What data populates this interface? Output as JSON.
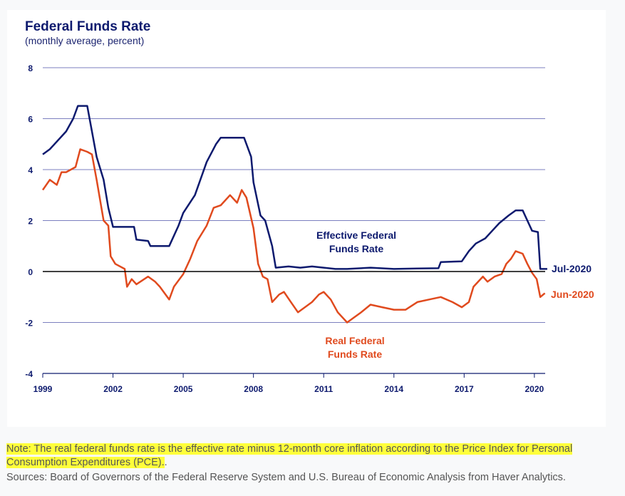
{
  "chart_data": {
    "type": "line",
    "title": "Federal Funds Rate",
    "subtitle": "(monthly average, percent)",
    "xlabel": "",
    "ylabel": "",
    "xlim": [
      1999,
      2020.6
    ],
    "ylim": [
      -4,
      8
    ],
    "x_ticks": [
      1999,
      2002,
      2005,
      2008,
      2011,
      2014,
      2017,
      2020
    ],
    "y_ticks": [
      8,
      6,
      4,
      2,
      0,
      -2,
      -4
    ],
    "grid": true,
    "colors": {
      "effective": "#0d1a6e",
      "real": "#e04a1e",
      "grid": "#7b7fbf"
    },
    "series": [
      {
        "name": "Effective Federal Funds Rate",
        "label_lines": [
          "Effective Federal",
          "Funds Rate"
        ],
        "end_label": "Jul-2020",
        "x": [
          1999.0,
          1999.3,
          1999.5,
          1999.8,
          2000.0,
          2000.3,
          2000.5,
          2000.9,
          2001.0,
          2001.3,
          2001.6,
          2001.8,
          2002.0,
          2002.9,
          2003.0,
          2003.5,
          2003.6,
          2004.4,
          2004.8,
          2005.0,
          2005.5,
          2006.0,
          2006.4,
          2006.6,
          2007.6,
          2007.9,
          2008.0,
          2008.3,
          2008.5,
          2008.8,
          2008.95,
          2009.5,
          2010.0,
          2010.5,
          2011.0,
          2011.5,
          2012.0,
          2013.0,
          2014.0,
          2015.0,
          2015.9,
          2016.0,
          2016.9,
          2017.2,
          2017.5,
          2017.9,
          2018.2,
          2018.5,
          2018.9,
          2019.2,
          2019.5,
          2019.7,
          2019.9,
          2020.15,
          2020.25,
          2020.55
        ],
        "y": [
          4.6,
          4.8,
          5.0,
          5.3,
          5.5,
          6.0,
          6.5,
          6.5,
          6.0,
          4.5,
          3.6,
          2.5,
          1.75,
          1.75,
          1.25,
          1.2,
          1.0,
          1.0,
          1.8,
          2.3,
          3.0,
          4.3,
          5.0,
          5.25,
          5.25,
          4.5,
          3.5,
          2.2,
          2.0,
          1.0,
          0.15,
          0.2,
          0.15,
          0.2,
          0.15,
          0.1,
          0.1,
          0.15,
          0.1,
          0.12,
          0.13,
          0.37,
          0.4,
          0.8,
          1.1,
          1.3,
          1.6,
          1.9,
          2.2,
          2.4,
          2.4,
          2.0,
          1.6,
          1.55,
          0.1,
          0.1
        ]
      },
      {
        "name": "Real Federal Funds Rate",
        "label_lines": [
          "Real Federal",
          "Funds Rate"
        ],
        "end_label": "Jun-2020",
        "x": [
          1999.0,
          1999.3,
          1999.6,
          1999.8,
          2000.0,
          2000.4,
          2000.6,
          2000.9,
          2001.1,
          2001.3,
          2001.6,
          2001.8,
          2001.9,
          2002.1,
          2002.5,
          2002.6,
          2002.8,
          2003.0,
          2003.5,
          2003.8,
          2004.0,
          2004.4,
          2004.6,
          2005.0,
          2005.3,
          2005.6,
          2006.0,
          2006.3,
          2006.6,
          2007.0,
          2007.3,
          2007.5,
          2007.7,
          2008.0,
          2008.2,
          2008.4,
          2008.6,
          2008.8,
          2009.1,
          2009.3,
          2009.6,
          2009.9,
          2010.2,
          2010.5,
          2010.8,
          2011.0,
          2011.3,
          2011.6,
          2012.0,
          2012.3,
          2012.6,
          2013.0,
          2013.5,
          2014.0,
          2014.5,
          2015.0,
          2015.5,
          2016.0,
          2016.5,
          2016.9,
          2017.2,
          2017.4,
          2017.8,
          2018.0,
          2018.3,
          2018.6,
          2018.8,
          2019.0,
          2019.2,
          2019.5,
          2019.7,
          2019.9,
          2020.1,
          2020.25,
          2020.45
        ],
        "y": [
          3.2,
          3.6,
          3.4,
          3.9,
          3.9,
          4.1,
          4.8,
          4.7,
          4.6,
          3.6,
          2.0,
          1.8,
          0.6,
          0.3,
          0.1,
          -0.6,
          -0.3,
          -0.5,
          -0.2,
          -0.4,
          -0.6,
          -1.1,
          -0.6,
          -0.1,
          0.5,
          1.2,
          1.8,
          2.5,
          2.6,
          3.0,
          2.7,
          3.2,
          2.9,
          1.7,
          0.3,
          -0.2,
          -0.3,
          -1.2,
          -0.9,
          -0.8,
          -1.2,
          -1.6,
          -1.4,
          -1.2,
          -0.9,
          -0.8,
          -1.1,
          -1.6,
          -2.0,
          -1.8,
          -1.6,
          -1.3,
          -1.4,
          -1.5,
          -1.5,
          -1.2,
          -1.1,
          -1.0,
          -1.2,
          -1.4,
          -1.2,
          -0.6,
          -0.2,
          -0.4,
          -0.2,
          -0.1,
          0.3,
          0.5,
          0.8,
          0.7,
          0.3,
          -0.05,
          -0.3,
          -1.0,
          -0.85
        ]
      }
    ]
  },
  "notes": {
    "note": "Note: The real federal funds rate is the effective rate minus 12-month core inflation according to the Price Index for Personal Consumption Expenditures (PCE).",
    "note_tail": ".",
    "sources": "Sources: Board of Governors of the Federal Reserve System and U.S. Bureau of Economic Analysis from Haver Analytics."
  }
}
